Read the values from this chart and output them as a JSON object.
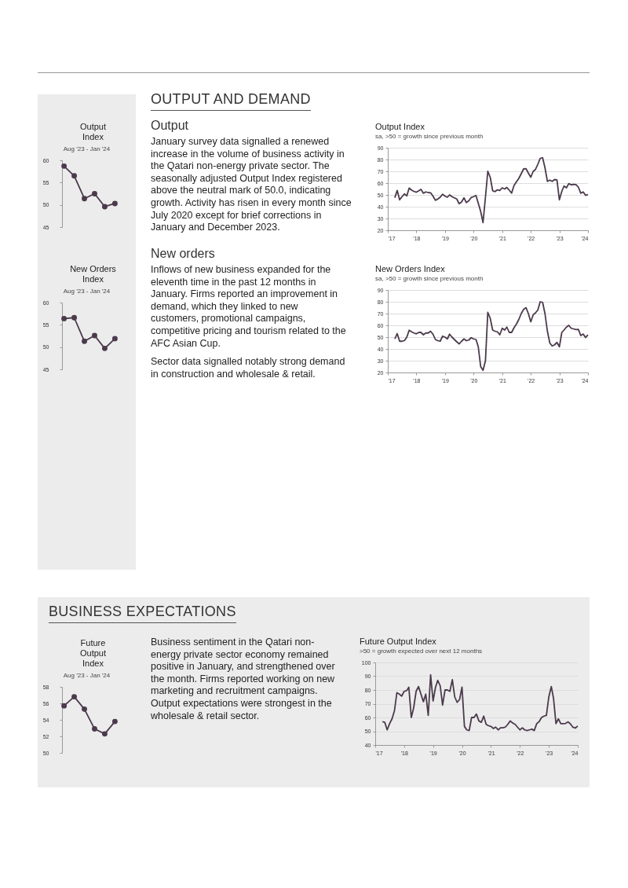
{
  "chart_data": [
    {
      "type": "line",
      "title": "Output Index",
      "subtitle": "Aug '23 - Jan '24",
      "annotations": [
        "OUTPUT AND DEMAND",
        "Output",
        "January survey data signalled a renewed increase in the volume of business activity in the Qatari non-energy private sector. The seasonally adjusted Output Index registered above the neutral mark of 50.0, indicating growth. Activity has risen in every month since July 2020 except for brief corrections in January and December 2023."
      ],
      "categories": [
        null,
        null,
        null,
        null,
        null,
        null
      ],
      "values": [
        58.7,
        56.5,
        51.4,
        52.5,
        49.6,
        50.3
      ],
      "color": "#4b3a4b",
      "ylim": [
        45,
        60
      ],
      "yticks": [
        45,
        50,
        55,
        60
      ],
      "tick_labels": "y",
      "marker": "circle",
      "line_style": "solid"
    },
    {
      "type": "line",
      "title": "Output Index",
      "subtitle": "sa, >50 = growth since previous month",
      "x": [
        "2017-04",
        "2017-05",
        "2017-06",
        "2017-07",
        "2017-08",
        "2017-09",
        "2017-10",
        "2017-11",
        "2017-12",
        "2018-01",
        "2018-02",
        "2018-03",
        "2018-04",
        "2018-05",
        "2018-06",
        "2018-07",
        "2018-08",
        "2018-09",
        "2018-10",
        "2018-11",
        "2018-12",
        "2019-01",
        "2019-02",
        "2019-03",
        "2019-04",
        "2019-05",
        "2019-06",
        "2019-07",
        "2019-08",
        "2019-09",
        "2019-10",
        "2019-11",
        "2019-12",
        "2020-01",
        "2020-02",
        "2020-03",
        "2020-04",
        "2020-05",
        "2020-06",
        "2020-07",
        "2020-08",
        "2020-09",
        "2020-10",
        "2020-11",
        "2020-12",
        "2021-01",
        "2021-02",
        "2021-03",
        "2021-04",
        "2021-05",
        "2021-06",
        "2021-07",
        "2021-08",
        "2021-09",
        "2021-10",
        "2021-11",
        "2021-12",
        "2022-01",
        "2022-02",
        "2022-03",
        "2022-04",
        "2022-05",
        "2022-06",
        "2022-07",
        "2022-08",
        "2022-09",
        "2022-10",
        "2022-11",
        "2022-12",
        "2023-01",
        "2023-02",
        "2023-03",
        "2023-04",
        "2023-05",
        "2023-06",
        "2023-07",
        "2023-08",
        "2023-09",
        "2023-10",
        "2023-11",
        "2023-12",
        "2024-01"
      ],
      "values": [
        47.6,
        53.8,
        45.8,
        48.5,
        50.8,
        49.2,
        55.8,
        54,
        53,
        52.3,
        53.5,
        54.7,
        51.4,
        52.5,
        52,
        51.8,
        49,
        45.4,
        46.5,
        48,
        50.5,
        49,
        48,
        50,
        48.5,
        47.5,
        46.5,
        42.5,
        44,
        47.5,
        43.5,
        45,
        47.7,
        48.5,
        49.5,
        43,
        36,
        26.5,
        48,
        70,
        65,
        53.5,
        52.8,
        54.3,
        53.8,
        56,
        55,
        56.3,
        54,
        51.5,
        58,
        61,
        64,
        68,
        72,
        72.3,
        68.5,
        65,
        70,
        71.5,
        76,
        81,
        81.5,
        73,
        61.5,
        62.5,
        61.5,
        63,
        62.8,
        45.8,
        53,
        57.5,
        56,
        59.6,
        58.5,
        58.9,
        58.7,
        56.5,
        51.4,
        52.5,
        49.6,
        50.3
      ],
      "color": "#4b3a4b",
      "xlim": [
        "2017-01",
        "2024-01"
      ],
      "xticks": [
        {
          "value": "2017-01",
          "label": "'17"
        },
        {
          "value": "2018-01",
          "label": "'18"
        },
        {
          "value": "2019-01",
          "label": "'19"
        },
        {
          "value": "2020-01",
          "label": "'20"
        },
        {
          "value": "2021-01",
          "label": "'21"
        },
        {
          "value": "2022-01",
          "label": "'22"
        },
        {
          "value": "2023-01",
          "label": "'23"
        },
        {
          "value": "2024-01",
          "label": "'24"
        }
      ],
      "ylim": [
        20,
        90
      ],
      "yticks": [
        20,
        30,
        40,
        50,
        60,
        70,
        80,
        90
      ],
      "grid": "y",
      "line_style": "solid"
    },
    {
      "type": "line",
      "title": "New Orders Index",
      "subtitle": "Aug '23 - Jan '24",
      "annotations": [
        "New orders",
        "Inflows of new business expanded for the eleventh time in the past 12 months in January. Firms reported an improvement in demand, which they linked to new customers, promotional campaigns, competitive pricing and tourism related to the AFC Asian Cup.",
        "Sector data signalled notably strong demand in construction and wholesale & retail."
      ],
      "categories": [
        null,
        null,
        null,
        null,
        null,
        null
      ],
      "values": [
        56.4,
        56.6,
        51.3,
        52.6,
        49.7,
        51.9
      ],
      "color": "#4b3a4b",
      "ylim": [
        45,
        60
      ],
      "yticks": [
        45,
        50,
        55,
        60
      ],
      "tick_labels": "y",
      "marker": "circle",
      "line_style": "solid"
    },
    {
      "type": "line",
      "title": "New Orders Index",
      "subtitle": "sa, >50 = growth since previous month",
      "x": [
        "2017-04",
        "2017-05",
        "2017-06",
        "2017-07",
        "2017-08",
        "2017-09",
        "2017-10",
        "2017-11",
        "2017-12",
        "2018-01",
        "2018-02",
        "2018-03",
        "2018-04",
        "2018-05",
        "2018-06",
        "2018-07",
        "2018-08",
        "2018-09",
        "2018-10",
        "2018-11",
        "2018-12",
        "2019-01",
        "2019-02",
        "2019-03",
        "2019-04",
        "2019-05",
        "2019-06",
        "2019-07",
        "2019-08",
        "2019-09",
        "2019-10",
        "2019-11",
        "2019-12",
        "2020-01",
        "2020-02",
        "2020-03",
        "2020-04",
        "2020-05",
        "2020-06",
        "2020-07",
        "2020-08",
        "2020-09",
        "2020-10",
        "2020-11",
        "2020-12",
        "2021-01",
        "2021-02",
        "2021-03",
        "2021-04",
        "2021-05",
        "2021-06",
        "2021-07",
        "2021-08",
        "2021-09",
        "2021-10",
        "2021-11",
        "2021-12",
        "2022-01",
        "2022-02",
        "2022-03",
        "2022-04",
        "2022-05",
        "2022-06",
        "2022-07",
        "2022-08",
        "2022-09",
        "2022-10",
        "2022-11",
        "2022-12",
        "2023-01",
        "2023-02",
        "2023-03",
        "2023-04",
        "2023-05",
        "2023-06",
        "2023-07",
        "2023-08",
        "2023-09",
        "2023-10",
        "2023-11",
        "2023-12",
        "2024-01"
      ],
      "values": [
        48.5,
        53,
        46.5,
        46.5,
        47,
        50,
        55.8,
        54.5,
        53.5,
        52.8,
        54,
        54,
        52,
        53.5,
        53.5,
        55,
        52.5,
        48,
        47,
        46.5,
        50.8,
        50,
        48.5,
        52.5,
        50,
        48,
        46,
        44.3,
        46.5,
        48.5,
        47,
        47.5,
        49.5,
        48.5,
        48,
        42,
        25,
        21.8,
        30,
        71,
        66,
        56,
        55,
        54.5,
        52,
        57.5,
        56,
        58.5,
        54,
        54,
        58,
        61,
        65,
        70,
        73.5,
        75,
        70,
        63,
        69,
        70.5,
        73,
        80,
        79.5,
        70,
        55,
        45,
        42.5,
        43.5,
        45.5,
        41.8,
        54,
        56,
        58.5,
        60,
        57.5,
        57,
        56.4,
        56.6,
        51.3,
        52.6,
        49.7,
        51.9
      ],
      "color": "#4b3a4b",
      "xlim": [
        "2017-01",
        "2024-01"
      ],
      "xticks": [
        {
          "value": "2017-01",
          "label": "'17"
        },
        {
          "value": "2018-01",
          "label": "'18"
        },
        {
          "value": "2019-01",
          "label": "'19"
        },
        {
          "value": "2020-01",
          "label": "'20"
        },
        {
          "value": "2021-01",
          "label": "'21"
        },
        {
          "value": "2022-01",
          "label": "'22"
        },
        {
          "value": "2023-01",
          "label": "'23"
        },
        {
          "value": "2024-01",
          "label": "'24"
        }
      ],
      "ylim": [
        20,
        90
      ],
      "yticks": [
        20,
        30,
        40,
        50,
        60,
        70,
        80,
        90
      ],
      "grid": "y",
      "line_style": "solid"
    },
    {
      "type": "line",
      "title": "Future Output Index",
      "subtitle": "Aug '23 - Jan '24",
      "annotations": [
        "BUSINESS EXPECTATIONS",
        "Business sentiment in the Qatari non-energy private sector economy remained positive in January, and strengthened over the month. Firms reported working on new marketing and recruitment campaigns. Output expectations were strongest in the wholesale & retail sector."
      ],
      "categories": [
        null,
        null,
        null,
        null,
        null,
        null
      ],
      "values": [
        55.7,
        56.8,
        55.3,
        52.9,
        52.3,
        53.8
      ],
      "color": "#4b3a4b",
      "ylim": [
        50,
        58
      ],
      "yticks": [
        50,
        52,
        54,
        56,
        58
      ],
      "tick_labels": "y",
      "marker": "circle",
      "line_style": "solid"
    },
    {
      "type": "line",
      "title": "Future Output Index",
      "subtitle": ">50 = growth expected over next 12 months",
      "x": [
        "2017-04",
        "2017-05",
        "2017-06",
        "2017-07",
        "2017-08",
        "2017-09",
        "2017-10",
        "2017-11",
        "2017-12",
        "2018-01",
        "2018-02",
        "2018-03",
        "2018-04",
        "2018-05",
        "2018-06",
        "2018-07",
        "2018-08",
        "2018-09",
        "2018-10",
        "2018-11",
        "2018-12",
        "2019-01",
        "2019-02",
        "2019-03",
        "2019-04",
        "2019-05",
        "2019-06",
        "2019-07",
        "2019-08",
        "2019-09",
        "2019-10",
        "2019-11",
        "2019-12",
        "2020-01",
        "2020-02",
        "2020-03",
        "2020-04",
        "2020-05",
        "2020-06",
        "2020-07",
        "2020-08",
        "2020-09",
        "2020-10",
        "2020-11",
        "2020-12",
        "2021-01",
        "2021-02",
        "2021-03",
        "2021-04",
        "2021-05",
        "2021-06",
        "2021-07",
        "2021-08",
        "2021-09",
        "2021-10",
        "2021-11",
        "2021-12",
        "2022-01",
        "2022-02",
        "2022-03",
        "2022-04",
        "2022-05",
        "2022-06",
        "2022-07",
        "2022-08",
        "2022-09",
        "2022-10",
        "2022-11",
        "2022-12",
        "2023-01",
        "2023-02",
        "2023-03",
        "2023-04",
        "2023-05",
        "2023-06",
        "2023-07",
        "2023-08",
        "2023-09",
        "2023-10",
        "2023-11",
        "2023-12",
        "2024-01"
      ],
      "values": [
        57,
        56.5,
        51,
        55.5,
        59,
        65,
        78,
        77,
        75.5,
        79,
        79.5,
        82,
        60,
        67,
        79,
        82.5,
        77,
        71.5,
        77,
        61.5,
        91,
        72,
        82,
        87,
        83,
        69,
        80,
        80,
        79,
        87.5,
        75,
        71,
        73,
        82,
        53.5,
        51,
        50.5,
        60,
        60,
        62.5,
        57.5,
        56.5,
        61,
        55,
        54,
        53.5,
        52,
        53,
        51,
        52.5,
        52.5,
        53,
        55,
        57.5,
        56,
        55,
        53,
        51,
        52.5,
        51,
        50.5,
        51,
        51.5,
        50.5,
        55.5,
        57,
        60,
        61,
        61.5,
        75,
        82.5,
        74,
        55.5,
        59,
        55.5,
        55.5,
        55.7,
        56.8,
        55.3,
        52.9,
        52.3,
        53.8
      ],
      "color": "#4b3a4b",
      "xlim": [
        "2017-01",
        "2024-01"
      ],
      "xticks": [
        {
          "value": "2017-01",
          "label": "'17"
        },
        {
          "value": "2018-01",
          "label": "'18"
        },
        {
          "value": "2019-01",
          "label": "'19"
        },
        {
          "value": "2020-01",
          "label": "'20"
        },
        {
          "value": "2021-01",
          "label": "'21"
        },
        {
          "value": "2022-01",
          "label": "'22"
        },
        {
          "value": "2023-01",
          "label": "'23"
        },
        {
          "value": "2024-01",
          "label": "'24"
        }
      ],
      "ylim": [
        40,
        100
      ],
      "yticks": [
        40,
        50,
        60,
        70,
        80,
        90,
        100
      ],
      "grid": "y",
      "line_style": "solid"
    }
  ]
}
